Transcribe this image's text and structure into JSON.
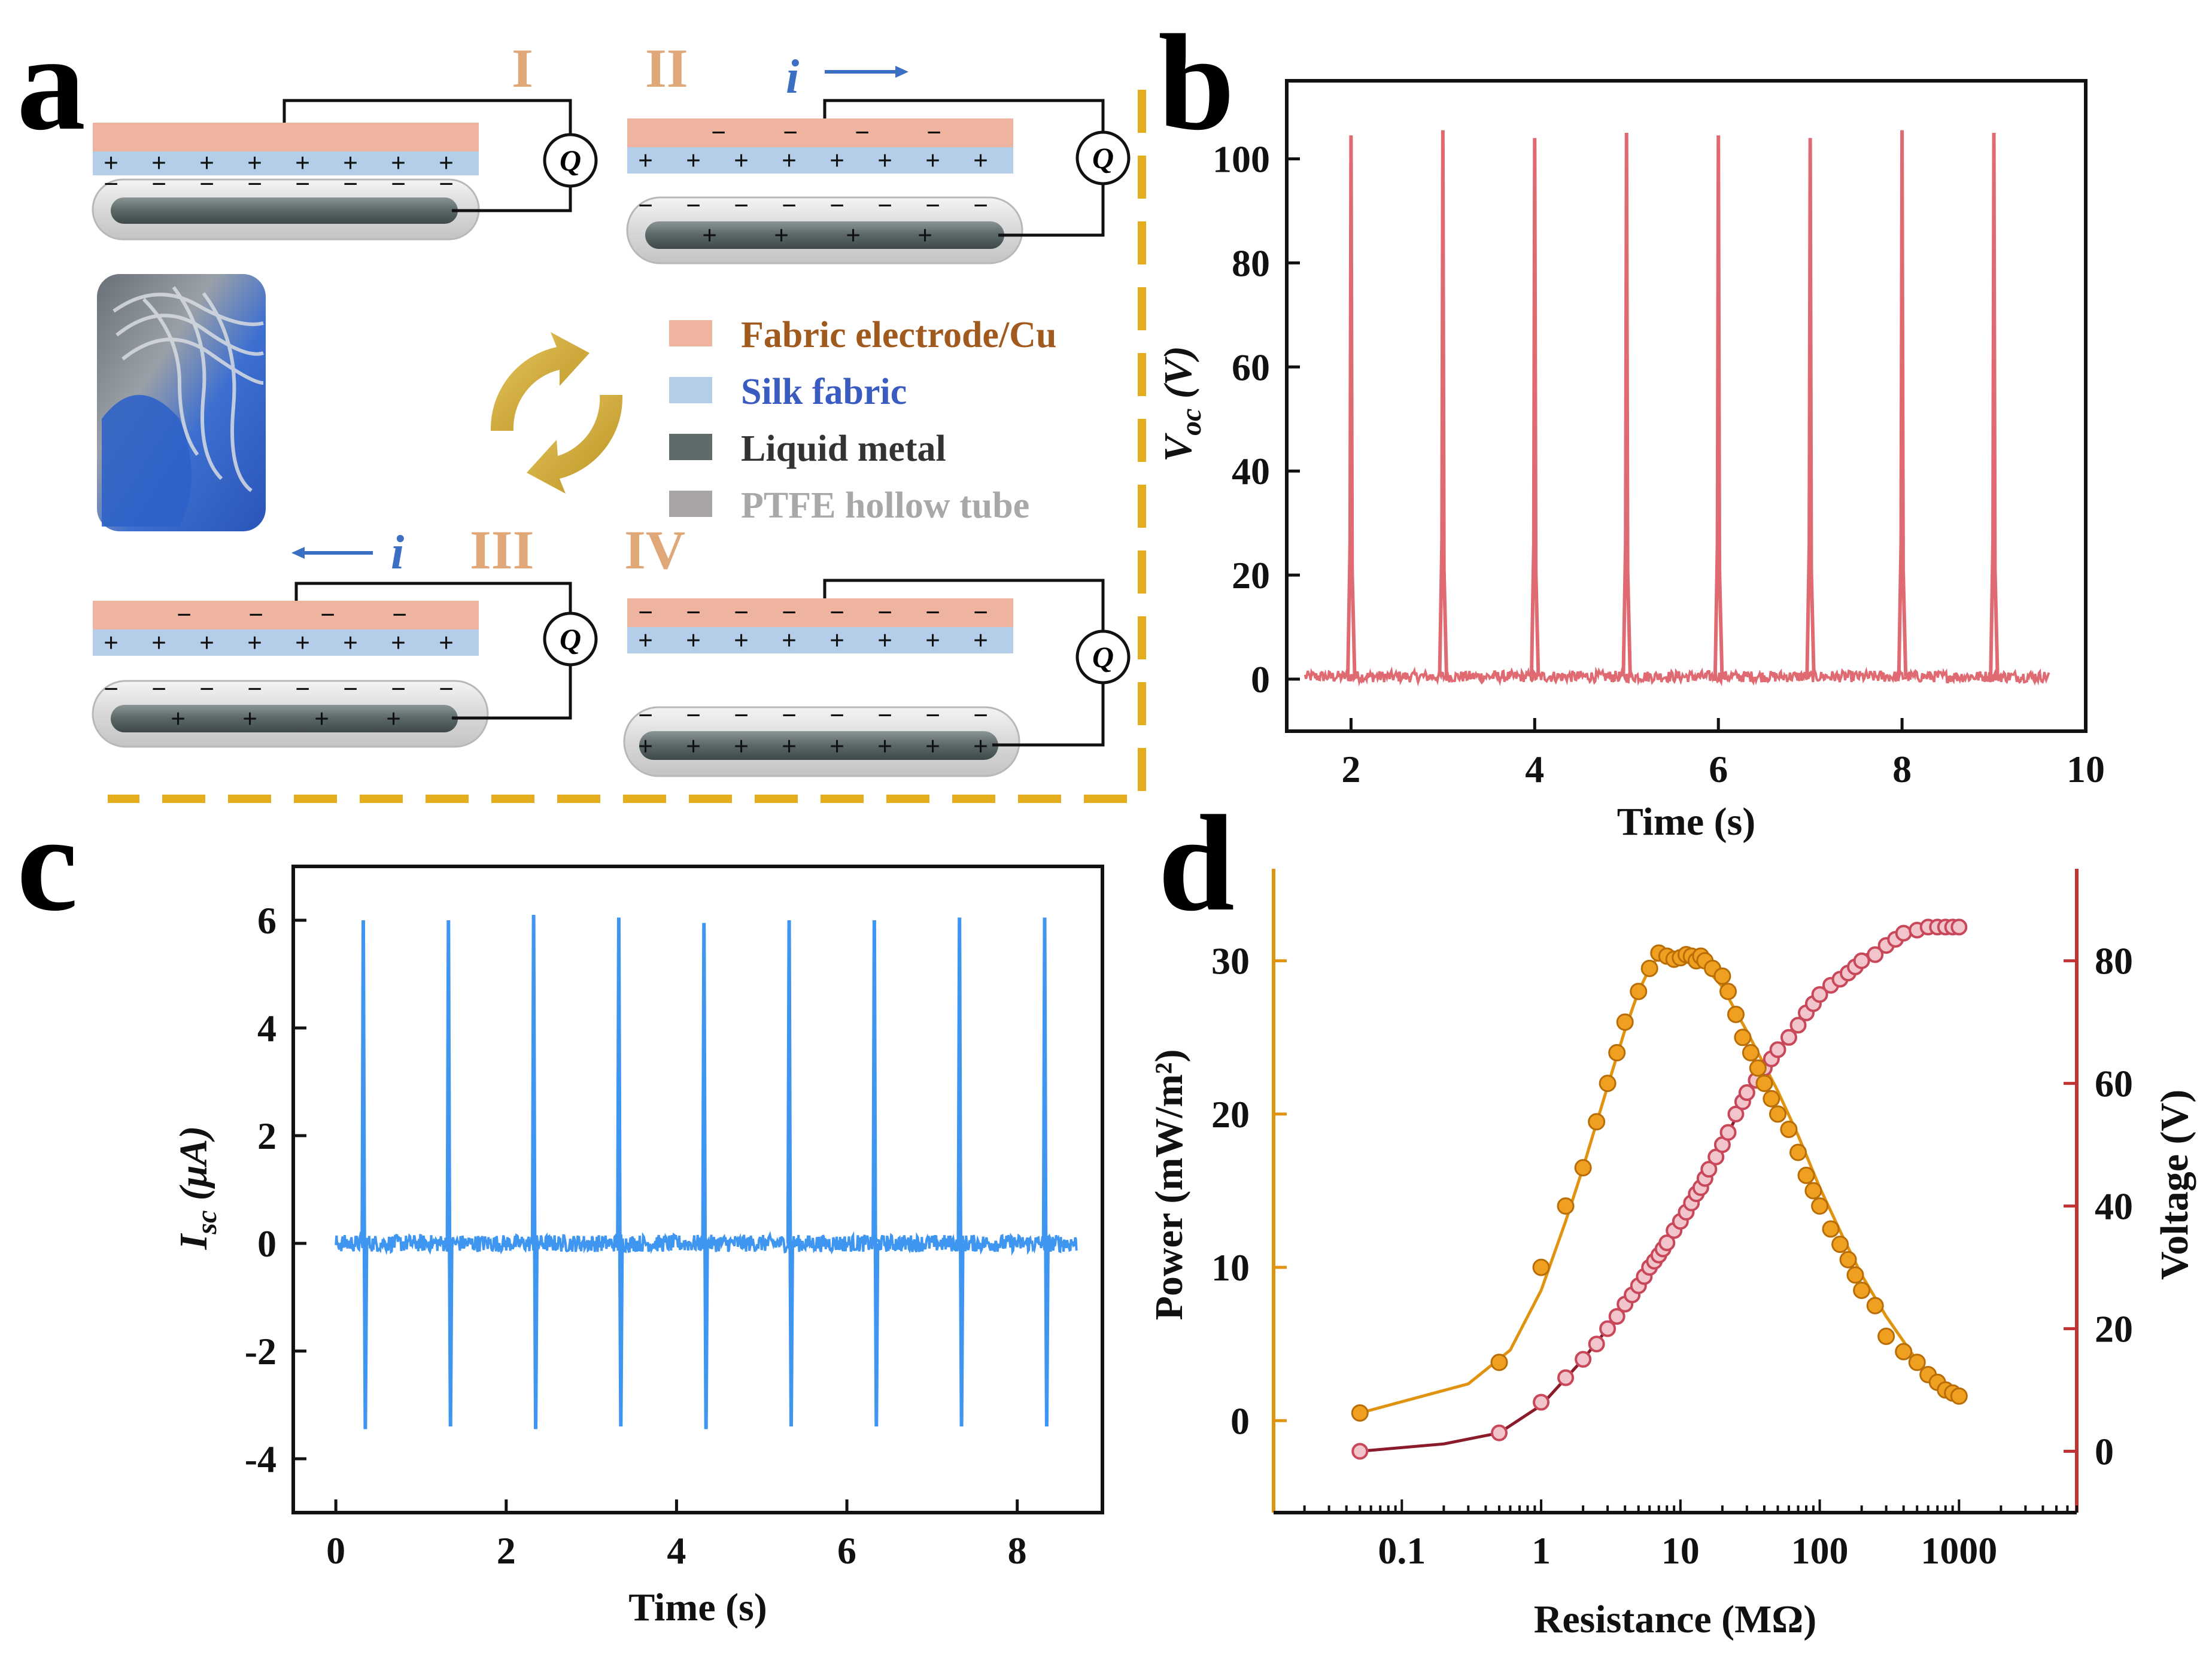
{
  "panels": {
    "a": {
      "letter": "a",
      "stages": [
        "I",
        "II",
        "III",
        "IV"
      ],
      "current_symbol": "i",
      "meter_symbol": "Q",
      "legend": [
        {
          "label": "Fabric electrode/Cu",
          "swatch": "#eeb4a0",
          "text_color": "#a05a1e"
        },
        {
          "label": "Silk fabric",
          "swatch": "#b4cde8",
          "text_color": "#3a5bbf"
        },
        {
          "label": "Liquid metal",
          "swatch": "#5e6b6b",
          "text_color": "#333333"
        },
        {
          "label": "PTFE hollow tube",
          "swatch": "#a8a4a4",
          "text_color": "#a8a8a8"
        }
      ]
    },
    "b": {
      "letter": "b"
    },
    "c": {
      "letter": "c"
    },
    "d": {
      "letter": "d"
    }
  },
  "colors": {
    "electrode": "#eeb4a0",
    "silk": "#b4cde8",
    "metal": "#5e6b6b",
    "tube": "#dcdcdc",
    "dash_border": "#e3ad1e",
    "voc_line": "#e06a72",
    "isc_line": "#3f96f0",
    "power": "#e0930f",
    "voltage": "#c23333"
  },
  "chart_data": [
    {
      "id": "b",
      "type": "line",
      "title": "",
      "xlabel": "Time (s)",
      "ylabel": "V",
      "ylabel_sub": "oc",
      "ylabel_unit": " (V)",
      "xlim": [
        1.3,
        10
      ],
      "ylim": [
        -10,
        115
      ],
      "xticks": [
        2,
        4,
        6,
        8,
        10
      ],
      "yticks": [
        0,
        20,
        40,
        60,
        80,
        100
      ],
      "x_range": [
        1.5,
        9.6
      ],
      "baseline": 0.5,
      "peaks": [
        {
          "t": 2,
          "v": 104.5
        },
        {
          "t": 3,
          "v": 105.5
        },
        {
          "t": 4,
          "v": 104.0
        },
        {
          "t": 5,
          "v": 105.0
        },
        {
          "t": 6,
          "v": 104.5
        },
        {
          "t": 7,
          "v": 104.0
        },
        {
          "t": 8,
          "v": 105.5
        },
        {
          "t": 9,
          "v": 105.0
        }
      ]
    },
    {
      "id": "c",
      "type": "line",
      "title": "",
      "xlabel": "Time (s)",
      "ylabel": "I",
      "ylabel_sub": "sc",
      "ylabel_unit": " (μA)",
      "xlim": [
        -0.5,
        9
      ],
      "ylim": [
        -5,
        7
      ],
      "xticks": [
        0,
        2,
        4,
        6,
        8
      ],
      "yticks": [
        -4,
        -2,
        0,
        2,
        4,
        6
      ],
      "x_range": [
        0,
        8.7
      ],
      "baseline": 0.0,
      "spikes": [
        {
          "t": 0.33,
          "max": 6.0,
          "min": -3.45
        },
        {
          "t": 1.33,
          "max": 6.0,
          "min": -3.4
        },
        {
          "t": 2.33,
          "max": 6.1,
          "min": -3.45
        },
        {
          "t": 3.33,
          "max": 6.05,
          "min": -3.4
        },
        {
          "t": 4.33,
          "max": 5.95,
          "min": -3.45
        },
        {
          "t": 5.33,
          "max": 6.0,
          "min": -3.4
        },
        {
          "t": 6.33,
          "max": 6.0,
          "min": -3.4
        },
        {
          "t": 7.33,
          "max": 6.05,
          "min": -3.4
        },
        {
          "t": 8.33,
          "max": 6.05,
          "min": -3.4
        }
      ]
    },
    {
      "id": "d",
      "type": "scatter",
      "title": "",
      "xlabel": "Resistance (MΩ)",
      "xscale": "log",
      "xlim": [
        0.012,
        7000
      ],
      "xticks": [
        0.1,
        1,
        10,
        100,
        1000
      ],
      "xtick_labels": [
        "0.1",
        "1",
        "10",
        "100",
        "1000"
      ],
      "y_left": {
        "label": "Power (mW/m²)",
        "ylim": [
          -6,
          36
        ],
        "ticks": [
          0,
          10,
          20,
          30
        ]
      },
      "y_right": {
        "label": "Voltage (V)",
        "ylim": [
          -10,
          95
        ],
        "ticks": [
          0,
          20,
          40,
          60,
          80
        ]
      },
      "series": [
        {
          "name": "Power",
          "axis": "left",
          "x": [
            0.05,
            0.5,
            1,
            1.5,
            2,
            2.5,
            3,
            3.5,
            4,
            5,
            6,
            7,
            8,
            9,
            10,
            11,
            12,
            13,
            14,
            15,
            17,
            20,
            22,
            25,
            28,
            32,
            36,
            40,
            45,
            50,
            60,
            70,
            80,
            90,
            100,
            120,
            140,
            160,
            180,
            200,
            250,
            300,
            400,
            500,
            600,
            700,
            800,
            900,
            1000
          ],
          "values": [
            0.5,
            3.8,
            10,
            14,
            16.5,
            19.5,
            22,
            24,
            26,
            28,
            29.5,
            30.5,
            30.3,
            30.1,
            30.2,
            30.4,
            30.3,
            30.0,
            30.3,
            30.0,
            29.5,
            29.0,
            28.0,
            26.5,
            25,
            24,
            23,
            22,
            21,
            20,
            19,
            17.5,
            16,
            15,
            14,
            12.5,
            11.5,
            10.5,
            9.5,
            8.5,
            7.5,
            5.5,
            4.5,
            3.8,
            3.0,
            2.5,
            2.0,
            1.8,
            1.6
          ],
          "fit_x": [
            0.05,
            0.3,
            0.6,
            1,
            1.5,
            2,
            3,
            4,
            5,
            6,
            7,
            8,
            10,
            12,
            15,
            20,
            25,
            30,
            40,
            50,
            70,
            100,
            150,
            200,
            300,
            500,
            700,
            1000
          ],
          "fit_values": [
            0.5,
            2.4,
            4.6,
            8.5,
            13,
            16.5,
            21.8,
            25.5,
            28,
            29.5,
            30.3,
            30.6,
            30.5,
            30.2,
            29.6,
            28.3,
            26.7,
            25.4,
            23.2,
            21.5,
            18.6,
            15.2,
            11.8,
            9.5,
            6.8,
            3.9,
            2.6,
            1.7
          ]
        },
        {
          "name": "Voltage",
          "axis": "right",
          "x": [
            0.05,
            0.5,
            1,
            1.5,
            2,
            2.5,
            3,
            3.5,
            4,
            4.5,
            5,
            5.5,
            6,
            6.5,
            7,
            7.5,
            8,
            9,
            10,
            11,
            12,
            13,
            14,
            15,
            16,
            18,
            20,
            22,
            25,
            28,
            30,
            35,
            40,
            45,
            50,
            60,
            70,
            80,
            90,
            100,
            120,
            140,
            160,
            180,
            200,
            250,
            300,
            350,
            400,
            500,
            600,
            700,
            800,
            900,
            1000
          ],
          "values": [
            0,
            3,
            8,
            12,
            15,
            17.5,
            20,
            22,
            24,
            25.5,
            27,
            28.5,
            30,
            31,
            32,
            33,
            34,
            36,
            37.5,
            39,
            40.5,
            42,
            43,
            44.5,
            46,
            48,
            50,
            52,
            55,
            57,
            58.5,
            60.5,
            62.5,
            64,
            65.5,
            67.5,
            69.5,
            71.5,
            73,
            74.5,
            76,
            77,
            78,
            79,
            80,
            81,
            82.5,
            83.5,
            84.5,
            85,
            85.5,
            85.5,
            85.5,
            85.5,
            85.5
          ],
          "fit_x": [
            0.05,
            0.2,
            0.5,
            1,
            2,
            3,
            5,
            7,
            10,
            15,
            20,
            30,
            50,
            70,
            100,
            150,
            200,
            300,
            500,
            700,
            1000
          ],
          "fit_values": [
            0,
            1.2,
            3,
            7.5,
            15,
            20,
            27,
            32,
            37.5,
            44.5,
            50,
            58,
            65.5,
            70,
            74.5,
            78.5,
            80.5,
            82.8,
            85,
            85.5,
            85.5
          ]
        }
      ]
    }
  ]
}
